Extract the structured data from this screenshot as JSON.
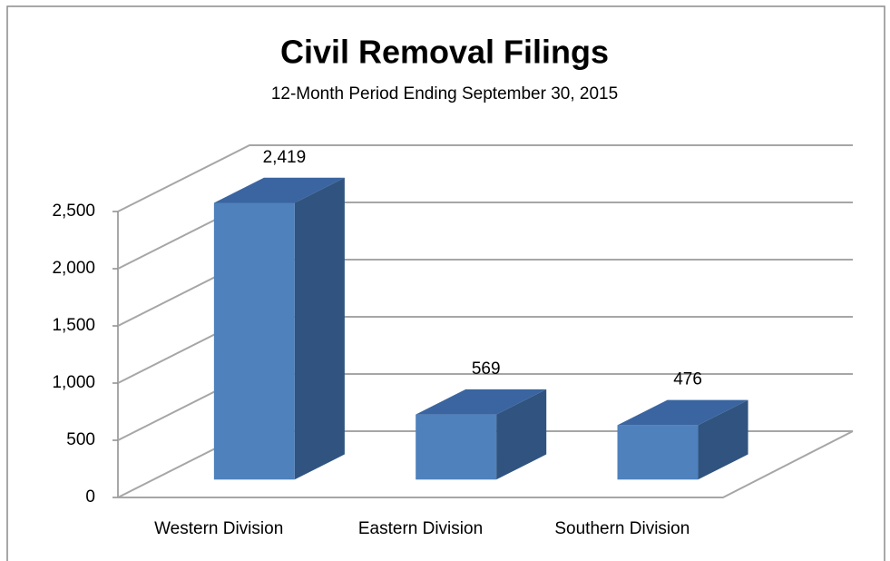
{
  "chart_data": {
    "type": "bar3d",
    "title": "Civil Removal Filings",
    "subtitle": "12-Month Period Ending September 30, 2015",
    "categories": [
      "Western Division",
      "Eastern Division",
      "Southern Division"
    ],
    "values": [
      2419,
      569,
      476
    ],
    "value_labels": [
      "2,419",
      "569",
      "476"
    ],
    "color": "#4f81bd",
    "ylim": [
      0,
      2500
    ],
    "yticks": [
      0,
      500,
      {
        "value": 1000,
        "label": "1,000"
      },
      {
        "value": 1500,
        "label": "1,500"
      },
      {
        "value": 2000,
        "label": "2,000"
      },
      {
        "value": 2500,
        "label": "2,500"
      }
    ],
    "grid": true
  }
}
